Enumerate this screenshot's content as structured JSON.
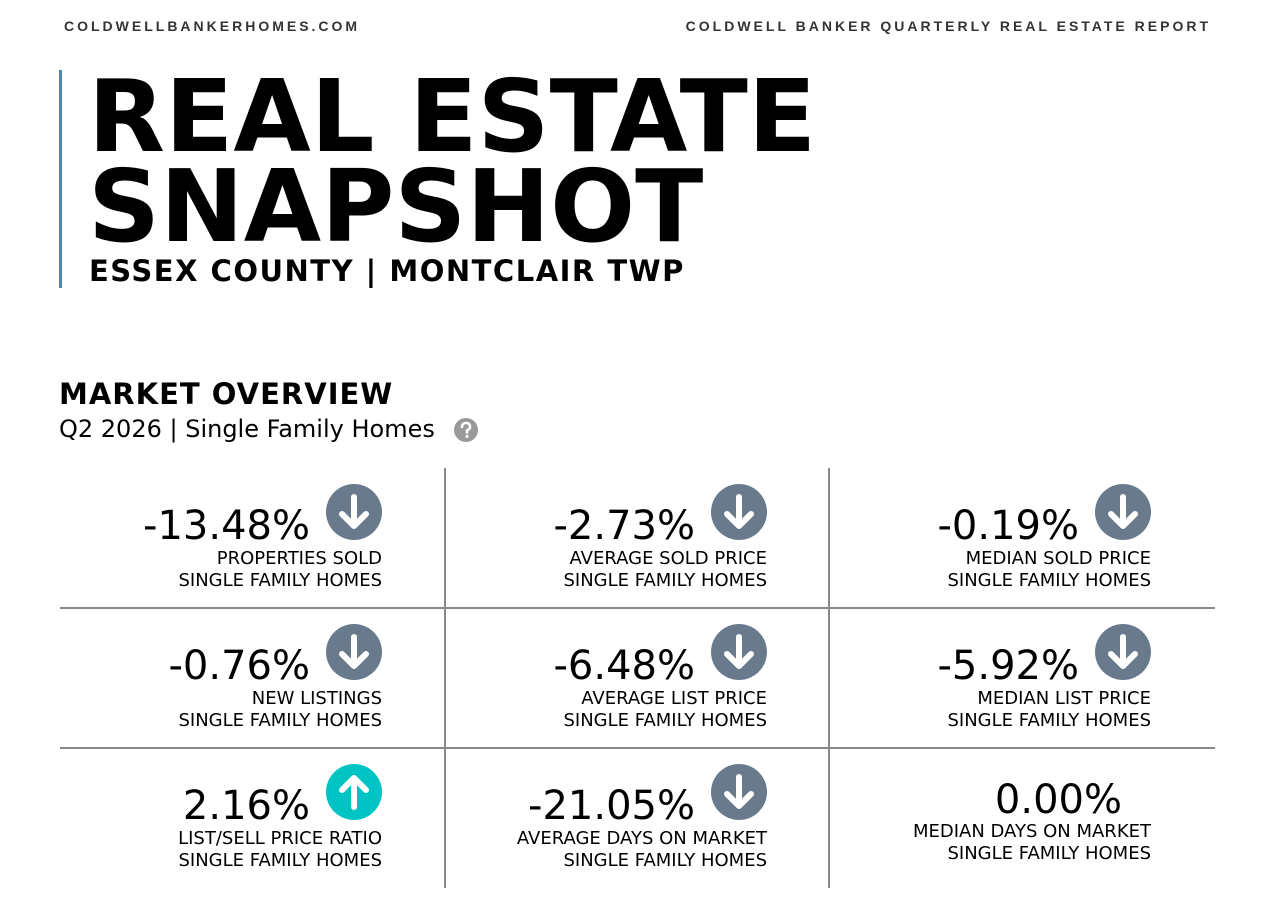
{
  "header": {
    "site": "COLDWELLBANKERHOMES.COM",
    "report": "COLDWELL BANKER QUARTERLY REAL ESTATE REPORT"
  },
  "title": {
    "lines": [
      "REAL ESTATE",
      "SNAPSHOT"
    ],
    "subtitle": "ESSEX COUNTY | MONTCLAIR TWP"
  },
  "overview": {
    "title": "MARKET OVERVIEW",
    "subtitle": "Q2 2026 | Single Family Homes",
    "metrics": [
      {
        "value": "-13.48%",
        "label": "PROPERTIES SOLD",
        "sublabel": "SINGLE FAMILY HOMES",
        "icon": "down"
      },
      {
        "value": "-2.73%",
        "label": "AVERAGE SOLD PRICE",
        "sublabel": "SINGLE FAMILY HOMES",
        "icon": "down"
      },
      {
        "value": "-0.19%",
        "label": "MEDIAN SOLD PRICE",
        "sublabel": "SINGLE FAMILY HOMES",
        "icon": "down"
      },
      {
        "value": "-0.76%",
        "label": "NEW LISTINGS",
        "sublabel": "SINGLE FAMILY HOMES",
        "icon": "down"
      },
      {
        "value": "-6.48%",
        "label": "AVERAGE LIST PRICE",
        "sublabel": "SINGLE FAMILY HOMES",
        "icon": "down"
      },
      {
        "value": "-5.92%",
        "label": "MEDIAN LIST PRICE",
        "sublabel": "SINGLE FAMILY HOMES",
        "icon": "down"
      },
      {
        "value": "2.16%",
        "label": "LIST/SELL PRICE RATIO",
        "sublabel": "SINGLE FAMILY HOMES",
        "icon": "up"
      },
      {
        "value": "-21.05%",
        "label": "AVERAGE DAYS ON MARKET",
        "sublabel": "SINGLE FAMILY HOMES",
        "icon": "down"
      },
      {
        "value": "0.00%",
        "label": "MEDIAN DAYS ON MARKET",
        "sublabel": "SINGLE FAMILY HOMES"
      }
    ]
  }
}
